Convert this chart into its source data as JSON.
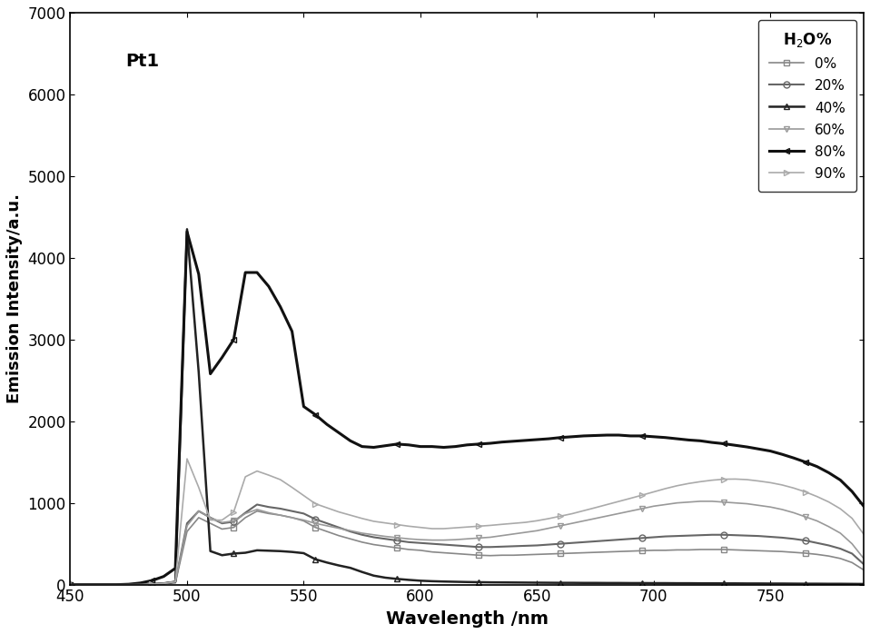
{
  "title": "Pt1",
  "xlabel": "Wavelength /nm",
  "ylabel": "Emission Intensity/a.u.",
  "xlim": [
    450,
    790
  ],
  "ylim": [
    0,
    7000
  ],
  "yticks": [
    0,
    1000,
    2000,
    3000,
    4000,
    5000,
    6000,
    7000
  ],
  "xticks": [
    450,
    500,
    550,
    600,
    650,
    700,
    750
  ],
  "series": [
    {
      "label": "0%",
      "color": "#888888",
      "linewidth": 1.2,
      "marker": "s",
      "markersize": 5,
      "markevery": 7,
      "fillstyle": "none",
      "x": [
        450,
        455,
        460,
        465,
        470,
        475,
        480,
        485,
        490,
        495,
        500,
        505,
        510,
        515,
        520,
        525,
        530,
        535,
        540,
        545,
        550,
        555,
        560,
        565,
        570,
        575,
        580,
        585,
        590,
        595,
        600,
        605,
        610,
        615,
        620,
        625,
        630,
        635,
        640,
        645,
        650,
        655,
        660,
        665,
        670,
        675,
        680,
        685,
        690,
        695,
        700,
        705,
        710,
        715,
        720,
        725,
        730,
        735,
        740,
        745,
        750,
        755,
        760,
        765,
        770,
        775,
        780,
        785,
        790
      ],
      "y": [
        0,
        0,
        0,
        0,
        0,
        0,
        2,
        5,
        10,
        20,
        650,
        820,
        750,
        680,
        700,
        820,
        900,
        870,
        850,
        820,
        780,
        700,
        650,
        600,
        560,
        520,
        490,
        470,
        450,
        430,
        420,
        400,
        390,
        380,
        370,
        360,
        355,
        360,
        360,
        365,
        370,
        375,
        380,
        385,
        390,
        395,
        400,
        405,
        410,
        415,
        420,
        420,
        425,
        425,
        430,
        430,
        430,
        425,
        420,
        415,
        410,
        405,
        395,
        385,
        370,
        350,
        320,
        270,
        180
      ]
    },
    {
      "label": "20%",
      "color": "#666666",
      "linewidth": 1.5,
      "marker": "o",
      "markersize": 5,
      "markevery": 7,
      "fillstyle": "none",
      "x": [
        450,
        455,
        460,
        465,
        470,
        475,
        480,
        485,
        490,
        495,
        500,
        505,
        510,
        515,
        520,
        525,
        530,
        535,
        540,
        545,
        550,
        555,
        560,
        565,
        570,
        575,
        580,
        585,
        590,
        595,
        600,
        605,
        610,
        615,
        620,
        625,
        630,
        635,
        640,
        645,
        650,
        655,
        660,
        665,
        670,
        675,
        680,
        685,
        690,
        695,
        700,
        705,
        710,
        715,
        720,
        725,
        730,
        735,
        740,
        745,
        750,
        755,
        760,
        765,
        770,
        775,
        780,
        785,
        790
      ],
      "y": [
        0,
        0,
        0,
        0,
        0,
        0,
        2,
        5,
        15,
        35,
        750,
        900,
        820,
        750,
        770,
        880,
        980,
        950,
        930,
        900,
        870,
        800,
        750,
        700,
        650,
        610,
        580,
        560,
        540,
        520,
        510,
        500,
        490,
        480,
        470,
        460,
        460,
        465,
        470,
        475,
        480,
        490,
        500,
        510,
        520,
        530,
        540,
        550,
        560,
        570,
        580,
        590,
        595,
        600,
        605,
        610,
        610,
        605,
        600,
        595,
        585,
        575,
        560,
        540,
        510,
        480,
        440,
        380,
        250
      ]
    },
    {
      "label": "40%",
      "color": "#222222",
      "linewidth": 1.8,
      "marker": "^",
      "markersize": 5,
      "markevery": 7,
      "fillstyle": "none",
      "x": [
        450,
        455,
        460,
        465,
        470,
        475,
        480,
        485,
        490,
        495,
        500,
        505,
        510,
        515,
        520,
        525,
        530,
        535,
        540,
        545,
        550,
        555,
        560,
        565,
        570,
        575,
        580,
        585,
        590,
        595,
        600,
        605,
        610,
        615,
        620,
        625,
        630,
        635,
        640,
        645,
        650,
        655,
        660,
        665,
        670,
        675,
        680,
        685,
        690,
        695,
        700,
        705,
        710,
        715,
        720,
        725,
        730,
        735,
        740,
        745,
        750,
        755,
        760,
        765,
        770,
        775,
        780,
        785,
        790
      ],
      "y": [
        0,
        0,
        0,
        0,
        0,
        0,
        2,
        5,
        15,
        35,
        4350,
        2600,
        410,
        360,
        380,
        390,
        420,
        415,
        410,
        400,
        385,
        310,
        270,
        235,
        205,
        155,
        110,
        85,
        70,
        58,
        48,
        42,
        38,
        35,
        32,
        30,
        28,
        27,
        26,
        25,
        24,
        23,
        22,
        22,
        21,
        21,
        20,
        20,
        19,
        19,
        18,
        18,
        17,
        17,
        16,
        16,
        15,
        15,
        14,
        14,
        13,
        13,
        12,
        11,
        11,
        10,
        10,
        9,
        8
      ]
    },
    {
      "label": "60%",
      "color": "#999999",
      "linewidth": 1.2,
      "marker": "v",
      "markersize": 5,
      "markevery": 7,
      "fillstyle": "none",
      "x": [
        450,
        455,
        460,
        465,
        470,
        475,
        480,
        485,
        490,
        495,
        500,
        505,
        510,
        515,
        520,
        525,
        530,
        535,
        540,
        545,
        550,
        555,
        560,
        565,
        570,
        575,
        580,
        585,
        590,
        595,
        600,
        605,
        610,
        615,
        620,
        625,
        630,
        635,
        640,
        645,
        650,
        655,
        660,
        665,
        670,
        675,
        680,
        685,
        690,
        695,
        700,
        705,
        710,
        715,
        720,
        725,
        730,
        735,
        740,
        745,
        750,
        755,
        760,
        765,
        770,
        775,
        780,
        785,
        790
      ],
      "y": [
        0,
        0,
        0,
        0,
        0,
        0,
        2,
        5,
        15,
        35,
        720,
        900,
        820,
        760,
        780,
        870,
        920,
        880,
        850,
        820,
        790,
        750,
        720,
        690,
        660,
        630,
        610,
        590,
        575,
        560,
        550,
        545,
        545,
        550,
        560,
        570,
        580,
        600,
        620,
        640,
        660,
        690,
        720,
        750,
        780,
        810,
        840,
        870,
        900,
        930,
        960,
        980,
        1000,
        1010,
        1020,
        1020,
        1010,
        1000,
        990,
        970,
        950,
        920,
        880,
        830,
        780,
        710,
        630,
        500,
        320
      ]
    },
    {
      "label": "80%",
      "color": "#111111",
      "linewidth": 2.2,
      "marker": "<",
      "markersize": 5,
      "markevery": 7,
      "fillstyle": "none",
      "x": [
        450,
        455,
        460,
        465,
        470,
        475,
        480,
        485,
        490,
        495,
        500,
        505,
        510,
        515,
        520,
        525,
        530,
        535,
        540,
        545,
        550,
        555,
        560,
        565,
        570,
        575,
        580,
        585,
        590,
        595,
        600,
        605,
        610,
        615,
        620,
        625,
        630,
        635,
        640,
        645,
        650,
        655,
        660,
        665,
        670,
        675,
        680,
        685,
        690,
        695,
        700,
        705,
        710,
        715,
        720,
        725,
        730,
        735,
        740,
        745,
        750,
        755,
        760,
        765,
        770,
        775,
        780,
        785,
        790
      ],
      "y": [
        0,
        0,
        0,
        0,
        0,
        5,
        20,
        50,
        100,
        200,
        4320,
        3800,
        2580,
        2780,
        3000,
        3820,
        3820,
        3650,
        3400,
        3100,
        2180,
        2080,
        1960,
        1860,
        1760,
        1690,
        1680,
        1700,
        1720,
        1710,
        1690,
        1690,
        1680,
        1690,
        1710,
        1720,
        1730,
        1745,
        1755,
        1765,
        1775,
        1785,
        1800,
        1810,
        1820,
        1825,
        1830,
        1830,
        1820,
        1820,
        1810,
        1800,
        1785,
        1770,
        1760,
        1740,
        1725,
        1705,
        1685,
        1660,
        1635,
        1595,
        1550,
        1500,
        1445,
        1370,
        1280,
        1140,
        960
      ]
    },
    {
      "label": "90%",
      "color": "#aaaaaa",
      "linewidth": 1.2,
      "marker": ">",
      "markersize": 5,
      "markevery": 7,
      "fillstyle": "none",
      "x": [
        450,
        455,
        460,
        465,
        470,
        475,
        480,
        485,
        490,
        495,
        500,
        505,
        510,
        515,
        520,
        525,
        530,
        535,
        540,
        545,
        550,
        555,
        560,
        565,
        570,
        575,
        580,
        585,
        590,
        595,
        600,
        605,
        610,
        615,
        620,
        625,
        630,
        635,
        640,
        645,
        650,
        655,
        660,
        665,
        670,
        675,
        680,
        685,
        690,
        695,
        700,
        705,
        710,
        715,
        720,
        725,
        730,
        735,
        740,
        745,
        750,
        755,
        760,
        765,
        770,
        775,
        780,
        785,
        790
      ],
      "y": [
        0,
        0,
        0,
        0,
        0,
        0,
        2,
        5,
        15,
        35,
        1540,
        1190,
        790,
        790,
        890,
        1320,
        1390,
        1340,
        1285,
        1190,
        1090,
        990,
        940,
        890,
        850,
        810,
        775,
        755,
        735,
        715,
        700,
        685,
        685,
        695,
        705,
        715,
        725,
        738,
        750,
        762,
        782,
        808,
        838,
        868,
        905,
        942,
        980,
        1018,
        1056,
        1095,
        1135,
        1175,
        1210,
        1238,
        1260,
        1278,
        1290,
        1292,
        1285,
        1268,
        1248,
        1220,
        1182,
        1135,
        1078,
        1012,
        928,
        812,
        618
      ]
    }
  ]
}
